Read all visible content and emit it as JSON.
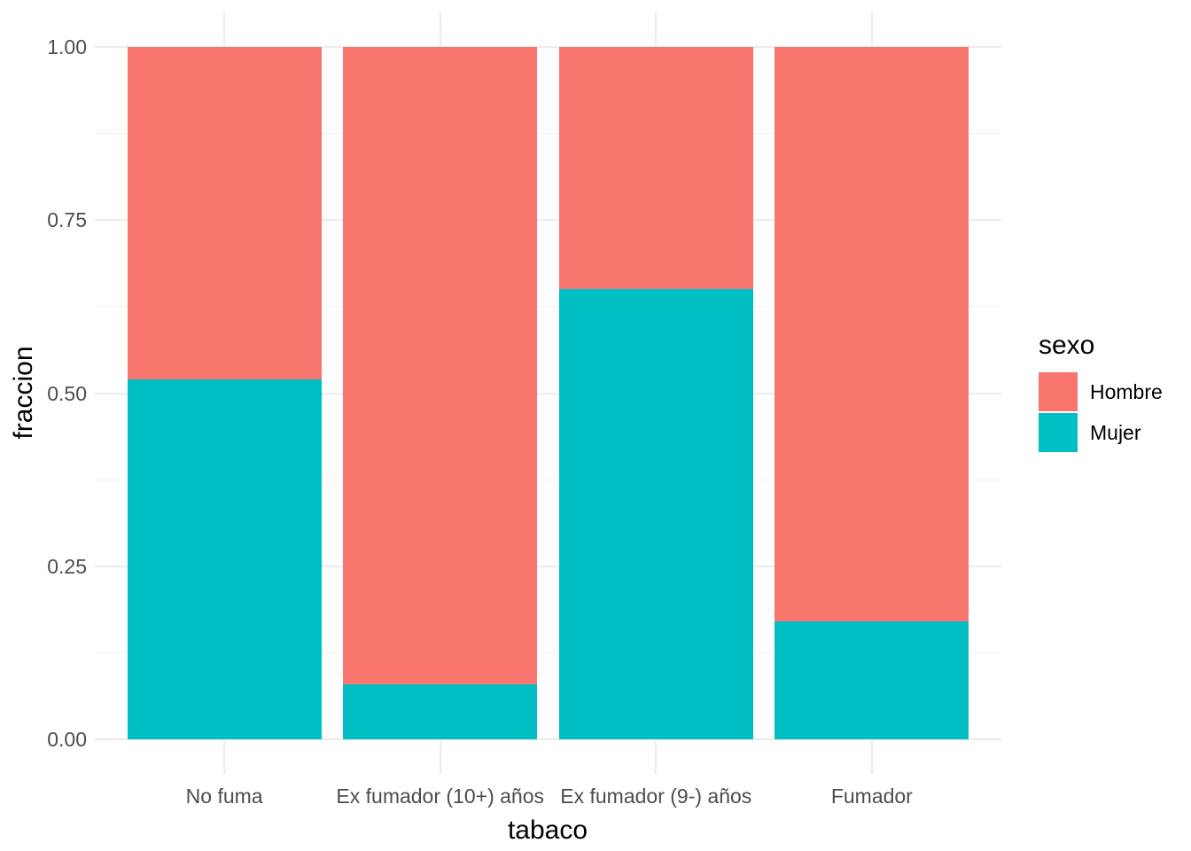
{
  "chart_data": {
    "type": "bar",
    "stacked": true,
    "orientation": "vertical",
    "title": "",
    "xlabel": "tabaco",
    "ylabel": "fraccion",
    "legend_title": "sexo",
    "legend_position": "right",
    "categories": [
      "No fuma",
      "Ex fumador (10+) años",
      "Ex fumador (9-) años",
      "Fumador"
    ],
    "series": [
      {
        "name": "Hombre",
        "color": "#F8766D",
        "values": [
          0.48,
          0.92,
          0.35,
          0.83
        ]
      },
      {
        "name": "Mujer",
        "color": "#00BFC4",
        "values": [
          0.52,
          0.08,
          0.65,
          0.17
        ]
      }
    ],
    "ylim": [
      0,
      1
    ],
    "yticks": [
      "0.00",
      "0.25",
      "0.50",
      "0.75",
      "1.00"
    ],
    "ytick_values": [
      0,
      0.25,
      0.5,
      0.75,
      1.0
    ],
    "grid": {
      "show_major": true,
      "show_minor": true,
      "minor_y": [
        0.125,
        0.375,
        0.625,
        0.875
      ],
      "major_color": "#EBEBEB",
      "minor_color": "#F1F1F1"
    },
    "colors": {
      "background": "#FFFFFF",
      "panel_background": "#FFFFFF",
      "axis_text": "#4D4D4D",
      "axis_title": "#000000"
    },
    "bar_width_fraction": 0.9
  }
}
